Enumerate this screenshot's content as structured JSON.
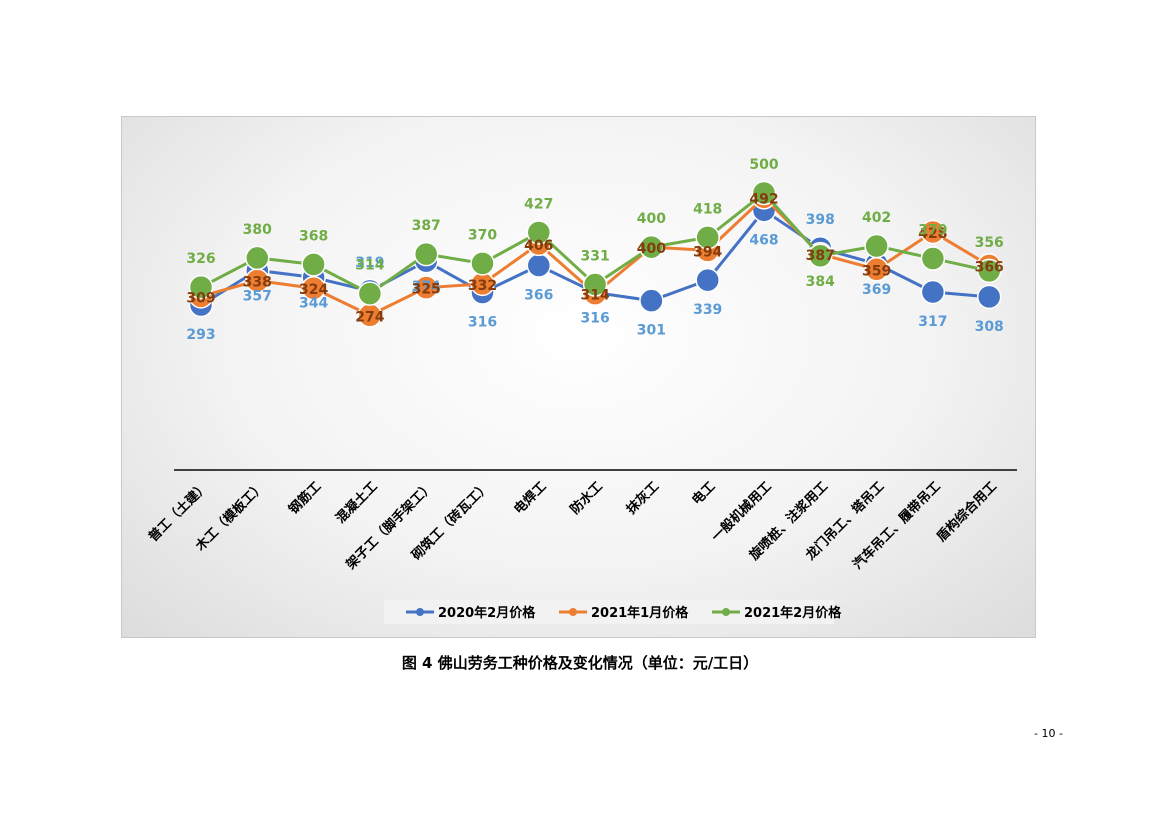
{
  "chart_data": {
    "type": "line",
    "categories": [
      "普工（土建）",
      "木工（模板工）",
      "钢筋工",
      "混凝土工",
      "架子工（脚手架工）",
      "砌筑工（砖瓦工）",
      "电焊工",
      "防水工",
      "抹灰工",
      "电工",
      "一般机械用工",
      "旋喷桩、注浆用工",
      "龙门吊工、塔吊工",
      "汽车吊工、履带吊工",
      "盾构综合用工"
    ],
    "series": [
      {
        "name": "2020年2月价格",
        "color": "#4472c4",
        "label_color": "#5b9bd5",
        "values": [
          293,
          357,
          344,
          319,
          374,
          316,
          366,
          316,
          301,
          339,
          468,
          398,
          369,
          317,
          308
        ]
      },
      {
        "name": "2021年1月价格",
        "color": "#ed7d31",
        "label_color": "#843c0c",
        "values": [
          309,
          338,
          324,
          274,
          325,
          332,
          406,
          314,
          400,
          394,
          492,
          387,
          359,
          428,
          366
        ]
      },
      {
        "name": "2021年2月价格",
        "color": "#70ad47",
        "label_color": "#70ad47",
        "values": [
          326,
          380,
          368,
          314,
          387,
          370,
          427,
          331,
          400,
          418,
          500,
          384,
          402,
          379,
          356
        ]
      }
    ],
    "legend_position": "bottom",
    "grid": false
  },
  "caption": "图 4   佛山劳务工种价格及变化情况（单位：元/工日）",
  "page_number": "- 10 -"
}
